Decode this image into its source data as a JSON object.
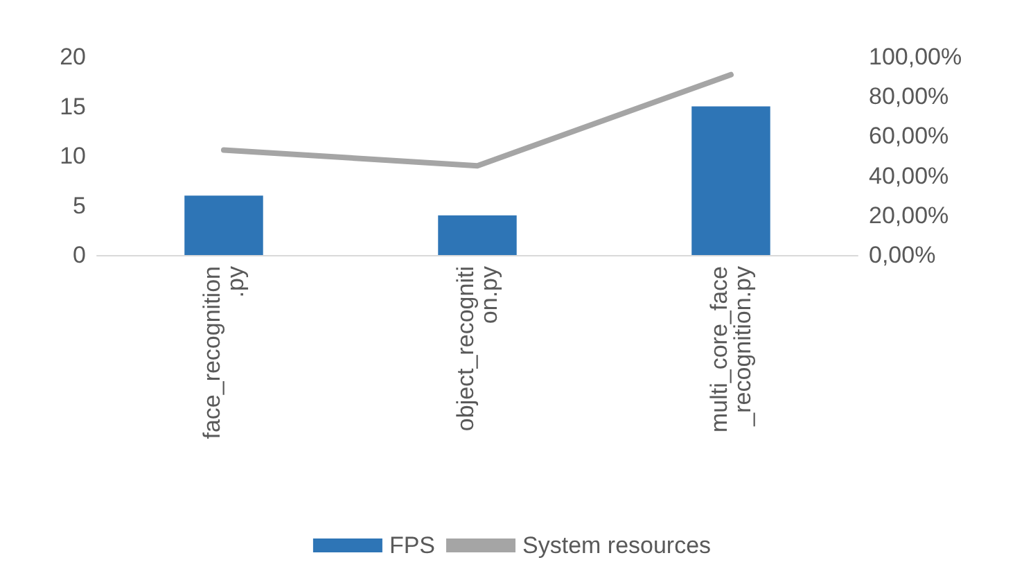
{
  "chart_data": {
    "type": "bar",
    "categories": [
      "face_recognition.py",
      "object_recognition.py",
      "multi_core_face_recognition.py"
    ],
    "series": [
      {
        "name": "FPS",
        "color": "#2e75b6",
        "values": [
          6,
          4,
          15
        ]
      },
      {
        "name": "System resources",
        "type": "line",
        "axis": "y2",
        "color": "#a5a5a5",
        "values": [
          53,
          45,
          91
        ]
      }
    ],
    "ylim": [
      0,
      20
    ],
    "yticks": [
      0,
      5,
      10,
      15,
      20
    ],
    "y2lim": [
      0,
      100
    ],
    "y2ticks": [
      {
        "value": 0,
        "label": "0,00%"
      },
      {
        "value": 20,
        "label": "20,00%"
      },
      {
        "value": 40,
        "label": "40,00%"
      },
      {
        "value": 60,
        "label": "60,00%"
      },
      {
        "value": 80,
        "label": "80,00%"
      },
      {
        "value": 100,
        "label": "100,00%"
      }
    ],
    "legend": "bottom",
    "grid": false,
    "marker": "none"
  }
}
